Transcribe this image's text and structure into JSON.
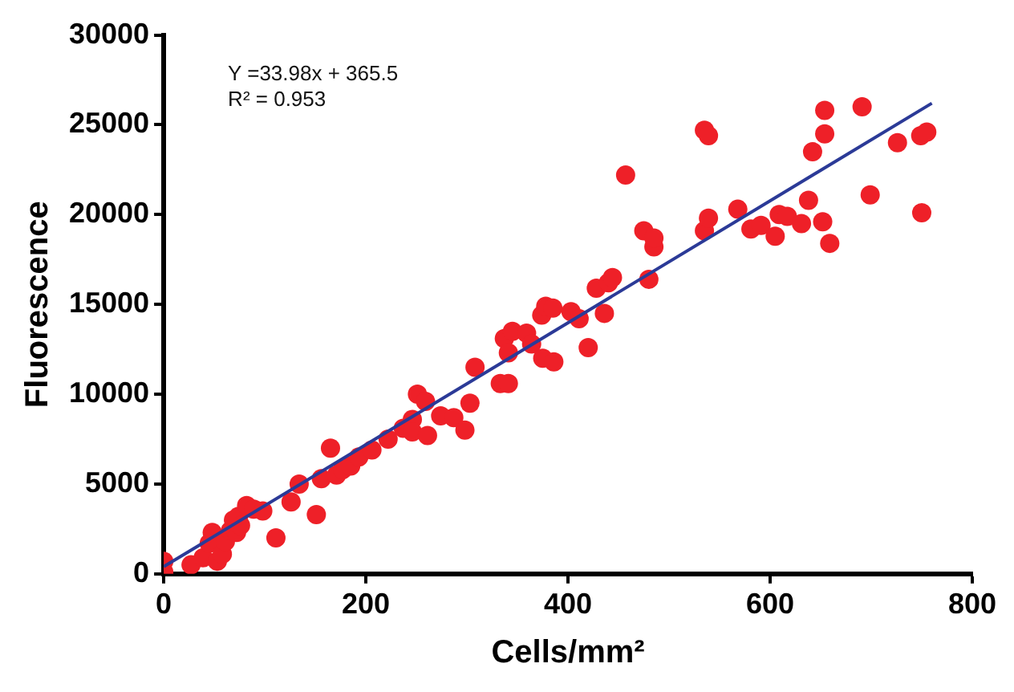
{
  "chart_data": {
    "type": "scatter",
    "xlabel": "Cells/mm²",
    "ylabel": "Fluorescence",
    "annotations": [
      "Y =33.98x + 365.5",
      "R² = 0.953"
    ],
    "xlim": [
      0,
      800
    ],
    "xticks": [
      0,
      200,
      400,
      600,
      800
    ],
    "ylim": [
      0,
      30000
    ],
    "yticks": [
      0,
      5000,
      10000,
      15000,
      20000,
      25000,
      30000
    ],
    "grid": false,
    "legend": false,
    "series": [
      {
        "type": "scatter",
        "marker": "circle",
        "color": "#ee2028",
        "x": [
          0,
          0,
          27,
          39,
          48,
          45,
          53,
          58,
          61,
          66,
          69,
          74,
          72,
          76,
          82,
          89,
          98,
          111,
          126,
          134,
          151,
          156,
          165,
          171,
          177,
          185,
          193,
          206,
          222,
          237,
          246,
          251,
          259,
          246,
          261,
          274,
          287,
          298,
          303,
          308,
          333,
          341,
          337,
          341,
          345,
          359,
          364,
          374,
          378,
          385,
          375,
          386,
          403,
          411,
          420,
          428,
          436,
          440,
          444,
          457,
          475,
          485,
          485,
          480,
          535,
          539,
          535,
          539,
          568,
          581,
          591,
          605,
          609,
          617,
          631,
          638,
          642,
          652,
          654,
          654,
          659,
          691,
          699,
          726,
          749,
          750,
          755
        ],
        "values": [
          700,
          100,
          500,
          900,
          2300,
          1700,
          700,
          1100,
          1800,
          2400,
          3000,
          3200,
          2300,
          2700,
          3800,
          3600,
          3500,
          2000,
          4000,
          5000,
          3300,
          5300,
          7000,
          5500,
          5800,
          6000,
          6500,
          6900,
          7500,
          8100,
          8600,
          10000,
          9600,
          7900,
          7700,
          8800,
          8700,
          8000,
          9500,
          11500,
          10600,
          10600,
          13100,
          12300,
          13500,
          13400,
          12800,
          14400,
          14900,
          14800,
          12000,
          11800,
          14600,
          14200,
          12600,
          15900,
          14500,
          16200,
          16500,
          22200,
          19100,
          18200,
          18700,
          16400,
          24700,
          24400,
          19100,
          19800,
          20300,
          19200,
          19400,
          18800,
          20000,
          19900,
          19500,
          20800,
          23500,
          19600,
          25800,
          24500,
          18400,
          26000,
          21100,
          24000,
          24400,
          20100,
          24600
        ]
      },
      {
        "type": "line",
        "marker": "none",
        "color": "#2b3a97",
        "x": [
          0,
          760
        ],
        "values": [
          400,
          26200
        ]
      }
    ]
  }
}
